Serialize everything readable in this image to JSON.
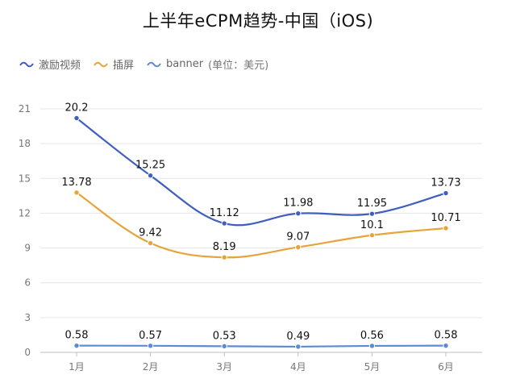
{
  "chart_data": {
    "type": "line",
    "title": "上半年eCPM趋势-中国（iOS)",
    "unit_note": "(单位：美元)",
    "categories": [
      "1月",
      "2月",
      "3月",
      "4月",
      "5月",
      "6月"
    ],
    "ylim": [
      0,
      21
    ],
    "y_ticks": [
      "0",
      "3",
      "6",
      "9",
      "12",
      "15",
      "18",
      "21"
    ],
    "grid": true,
    "legend_position": "top-left",
    "series": [
      {
        "name": "激励视频",
        "color": "#3f5fc0",
        "values": [
          20.2,
          15.25,
          11.12,
          11.98,
          11.95,
          13.73
        ],
        "labels": [
          "20.2",
          "15.25",
          "11.12",
          "11.98",
          "11.95",
          "13.73"
        ],
        "smooth": true
      },
      {
        "name": "插屏",
        "color": "#e6a43a",
        "values": [
          13.78,
          9.42,
          8.19,
          9.07,
          10.1,
          10.71
        ],
        "labels": [
          "13.78",
          "9.42",
          "8.19",
          "9.07",
          "10.1",
          "10.71"
        ],
        "smooth": true
      },
      {
        "name": "banner",
        "color": "#5b8ad6",
        "values": [
          0.58,
          0.57,
          0.53,
          0.49,
          0.56,
          0.58
        ],
        "labels": [
          "0.58",
          "0.57",
          "0.53",
          "0.49",
          "0.56",
          "0.58"
        ],
        "smooth": false
      }
    ]
  }
}
